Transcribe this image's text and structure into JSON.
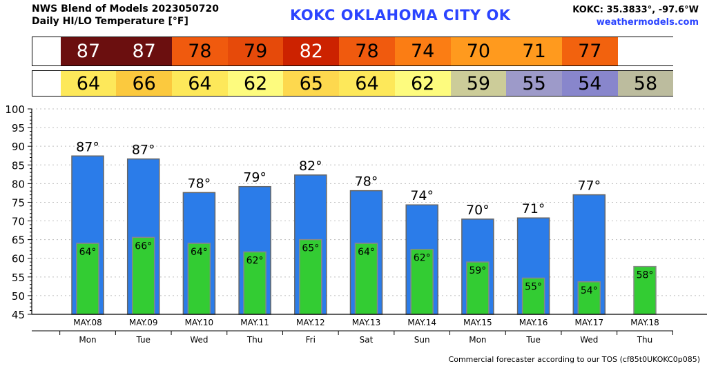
{
  "header": {
    "title_line1": "NWS Blend of Models 2023050720",
    "title_line2": "Daily HI/LO Temperature [°F]",
    "station": "KOKC   OKLAHOMA CITY   OK",
    "coords": "KOKC: 35.3833°, -97.6°W",
    "site": "weathermodels.com"
  },
  "colors": {
    "high_bar": "#2b7ce9",
    "low_bar": "#33cc33",
    "station_text": "#2b44ff",
    "site_text": "#2b44ff"
  },
  "high_row": {
    "cells": [
      {
        "text": "87",
        "color": "#6b0f0f",
        "text_color": "#ffffff"
      },
      {
        "text": "87",
        "color": "#6b0f0f",
        "text_color": "#ffffff"
      },
      {
        "text": "78",
        "color": "#f05a0e",
        "text_color": "#000000"
      },
      {
        "text": "79",
        "color": "#e64a0a",
        "text_color": "#000000"
      },
      {
        "text": "82",
        "color": "#cc2200",
        "text_color": "#ffffff"
      },
      {
        "text": "78",
        "color": "#f05a0e",
        "text_color": "#000000"
      },
      {
        "text": "74",
        "color": "#fb7d14",
        "text_color": "#000000"
      },
      {
        "text": "70",
        "color": "#ff9a1e",
        "text_color": "#000000"
      },
      {
        "text": "71",
        "color": "#ff9a1e",
        "text_color": "#000000"
      },
      {
        "text": "77",
        "color": "#f2620e",
        "text_color": "#000000"
      },
      {
        "text": "",
        "color": "#ffffff",
        "text_color": "#000000"
      }
    ]
  },
  "low_row": {
    "cells": [
      {
        "text": "64",
        "color": "#fde85a",
        "text_color": "#000000"
      },
      {
        "text": "66",
        "color": "#fbc93e",
        "text_color": "#000000"
      },
      {
        "text": "64",
        "color": "#fde85a",
        "text_color": "#000000"
      },
      {
        "text": "62",
        "color": "#fdfb7e",
        "text_color": "#000000"
      },
      {
        "text": "65",
        "color": "#fdd84e",
        "text_color": "#000000"
      },
      {
        "text": "64",
        "color": "#fde85a",
        "text_color": "#000000"
      },
      {
        "text": "62",
        "color": "#fdfb7e",
        "text_color": "#000000"
      },
      {
        "text": "59",
        "color": "#cccc99",
        "text_color": "#000000"
      },
      {
        "text": "55",
        "color": "#9d9ac9",
        "text_color": "#000000"
      },
      {
        "text": "54",
        "color": "#8886cc",
        "text_color": "#000000"
      },
      {
        "text": "58",
        "color": "#bcbc9e",
        "text_color": "#000000"
      }
    ]
  },
  "chart_data": {
    "type": "bar",
    "dates": [
      "MAY.08",
      "MAY.09",
      "MAY.10",
      "MAY.11",
      "MAY.12",
      "MAY.13",
      "MAY.14",
      "MAY.15",
      "MAY.16",
      "MAY.17",
      "MAY.18"
    ],
    "days": [
      "Mon",
      "Tue",
      "Wed",
      "Thu",
      "Fri",
      "Sat",
      "Sun",
      "Mon",
      "Tue",
      "Wed",
      "Thu"
    ],
    "series": [
      {
        "values": [
          87.4,
          86.6,
          77.6,
          79.2,
          82.3,
          78.1,
          74.3,
          70.5,
          70.8,
          77.0,
          null
        ]
      },
      {
        "values": [
          64.0,
          65.6,
          64.0,
          61.7,
          65.0,
          64.0,
          62.4,
          59.0,
          54.7,
          53.7,
          57.8
        ]
      }
    ],
    "high_labels": [
      "87°",
      "87°",
      "78°",
      "79°",
      "82°",
      "78°",
      "74°",
      "70°",
      "71°",
      "77°",
      ""
    ],
    "low_labels": [
      "64°",
      "66°",
      "64°",
      "62°",
      "65°",
      "64°",
      "62°",
      "59°",
      "55°",
      "54°",
      "58°"
    ],
    "ylim": [
      45,
      100
    ],
    "yticks": [
      45,
      50,
      55,
      60,
      65,
      70,
      75,
      80,
      85,
      90,
      95,
      100
    ],
    "grid": true
  },
  "footer": "Commercial forecaster according to our TOS (cf85t0UKOKC0p085)"
}
